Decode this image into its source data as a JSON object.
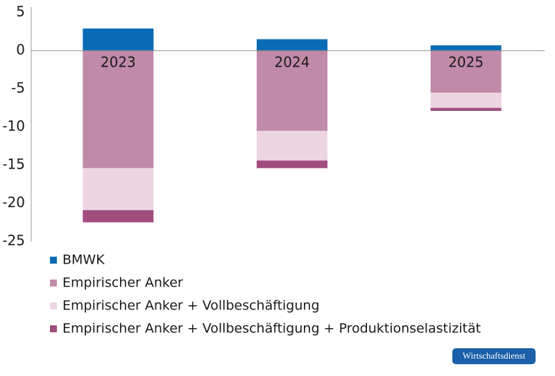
{
  "chart_data": {
    "type": "stacked_bar",
    "categories": [
      "2023",
      "2024",
      "2025"
    ],
    "series": [
      {
        "name": "BMWK",
        "color": "#0a6bb5",
        "values": [
          2.9,
          1.5,
          0.7
        ]
      },
      {
        "name": "Empirischer Anker",
        "color": "#c08aa9",
        "values": [
          -15.4,
          -10.5,
          -5.5
        ]
      },
      {
        "name": "Empirischer Anker + Vollbeschäftigung",
        "color": "#ecd5e1",
        "values": [
          -5.5,
          -3.9,
          -2.0
        ]
      },
      {
        "name": "Empirischer Anker + Vollbeschäftigung + Produktionselastizität",
        "color": "#a04d7e",
        "values": [
          -1.6,
          -1.0,
          -0.4
        ]
      }
    ],
    "ylim": [
      -25,
      5
    ],
    "yticks": [
      -25,
      -20,
      -15,
      -10,
      -5,
      0,
      5
    ],
    "badge": "Wirtschaftsdienst"
  }
}
